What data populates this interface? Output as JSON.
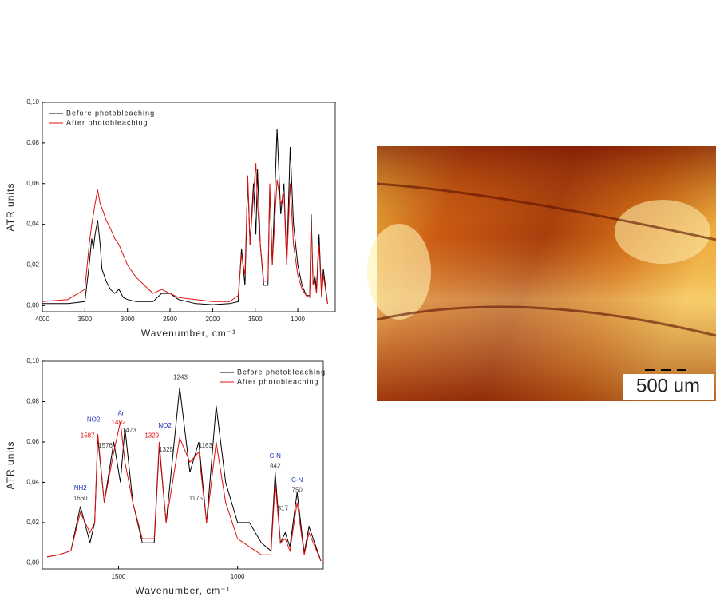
{
  "chart_data": [
    {
      "type": "line",
      "ylabel": "ATR units",
      "xlabel": "Wavenumber, cm⁻¹",
      "legend": "upper left",
      "xlim": [
        4000,
        560
      ],
      "ylim": [
        -0.003,
        0.1
      ],
      "xticks": [
        4000,
        3500,
        3000,
        2500,
        2000,
        1500,
        1000
      ],
      "yticks": [
        {
          "value": 0,
          "label": "0,00"
        },
        {
          "value": 0.02,
          "label": "0,02"
        },
        {
          "value": 0.04,
          "label": "0,04"
        },
        {
          "value": 0.06,
          "label": "0,06"
        },
        {
          "value": 0.08,
          "label": "0,08"
        },
        {
          "value": 0.1,
          "label": "0,10"
        }
      ],
      "x": [
        4000,
        3700,
        3500,
        3450,
        3420,
        3400,
        3380,
        3350,
        3320,
        3300,
        3250,
        3200,
        3150,
        3100,
        3050,
        3000,
        2900,
        2700,
        2600,
        2500,
        2400,
        2200,
        2000,
        1800,
        1700,
        1660,
        1620,
        1587,
        1560,
        1520,
        1492,
        1473,
        1440,
        1400,
        1350,
        1329,
        1300,
        1243,
        1200,
        1163,
        1130,
        1090,
        1050,
        1000,
        950,
        900,
        860,
        842,
        820,
        800,
        780,
        750,
        720,
        700,
        650
      ],
      "series": [
        {
          "name": "Before photobleaching",
          "color": "#000000",
          "values": [
            0.001,
            0.001,
            0.002,
            0.02,
            0.033,
            0.028,
            0.035,
            0.042,
            0.03,
            0.018,
            0.012,
            0.008,
            0.006,
            0.008,
            0.004,
            0.003,
            0.002,
            0.002,
            0.006,
            0.006,
            0.003,
            0.001,
            0.0005,
            0.001,
            0.002,
            0.028,
            0.01,
            0.062,
            0.03,
            0.06,
            0.035,
            0.067,
            0.03,
            0.01,
            0.01,
            0.058,
            0.02,
            0.087,
            0.045,
            0.06,
            0.02,
            0.078,
            0.04,
            0.02,
            0.01,
            0.005,
            0.005,
            0.045,
            0.01,
            0.015,
            0.008,
            0.035,
            0.005,
            0.018,
            0.001
          ]
        },
        {
          "name": "After photobleaching",
          "color": "#e01010",
          "values": [
            0.002,
            0.003,
            0.008,
            0.03,
            0.04,
            0.045,
            0.05,
            0.057,
            0.05,
            0.048,
            0.042,
            0.038,
            0.033,
            0.03,
            0.025,
            0.02,
            0.014,
            0.006,
            0.008,
            0.006,
            0.004,
            0.003,
            0.002,
            0.002,
            0.005,
            0.025,
            0.015,
            0.064,
            0.03,
            0.055,
            0.07,
            0.05,
            0.03,
            0.012,
            0.012,
            0.06,
            0.02,
            0.062,
            0.05,
            0.055,
            0.02,
            0.06,
            0.03,
            0.015,
            0.008,
            0.005,
            0.004,
            0.04,
            0.01,
            0.012,
            0.006,
            0.03,
            0.004,
            0.015,
            0.001
          ]
        }
      ]
    },
    {
      "type": "line",
      "ylabel": "ATR units",
      "xlabel": "Wavenumber, cm⁻¹",
      "legend": "upper right",
      "xlim": [
        1820,
        640
      ],
      "ylim": [
        -0.003,
        0.1
      ],
      "xticks": [
        1500,
        1000
      ],
      "yticks": [
        {
          "value": 0,
          "label": "0,00"
        },
        {
          "value": 0.02,
          "label": "0,02"
        },
        {
          "value": 0.04,
          "label": "0,04"
        },
        {
          "value": 0.06,
          "label": "0,06"
        },
        {
          "value": 0.08,
          "label": "0,08"
        },
        {
          "value": 0.1,
          "label": "0,10"
        }
      ],
      "x": [
        1800,
        1750,
        1700,
        1660,
        1620,
        1600,
        1587,
        1560,
        1520,
        1492,
        1473,
        1440,
        1400,
        1350,
        1329,
        1300,
        1243,
        1200,
        1163,
        1130,
        1090,
        1050,
        1000,
        950,
        900,
        860,
        842,
        820,
        800,
        780,
        750,
        720,
        700,
        650
      ],
      "series": [
        {
          "name": "Before photobleaching",
          "color": "#000000",
          "values": [
            0.003,
            0.004,
            0.006,
            0.028,
            0.01,
            0.02,
            0.062,
            0.03,
            0.06,
            0.04,
            0.067,
            0.03,
            0.01,
            0.01,
            0.058,
            0.02,
            0.087,
            0.045,
            0.06,
            0.02,
            0.078,
            0.04,
            0.02,
            0.02,
            0.01,
            0.006,
            0.045,
            0.01,
            0.015,
            0.008,
            0.035,
            0.005,
            0.018,
            0.001
          ]
        },
        {
          "name": "After photobleaching",
          "color": "#e01010",
          "values": [
            0.003,
            0.004,
            0.006,
            0.025,
            0.015,
            0.02,
            0.064,
            0.03,
            0.055,
            0.07,
            0.05,
            0.03,
            0.012,
            0.012,
            0.06,
            0.02,
            0.062,
            0.05,
            0.055,
            0.02,
            0.06,
            0.03,
            0.012,
            0.008,
            0.004,
            0.004,
            0.04,
            0.01,
            0.012,
            0.006,
            0.03,
            0.004,
            0.015,
            0.001
          ]
        }
      ],
      "annotations": [
        {
          "text": "NH2",
          "x": 1660,
          "y": 0.037,
          "color": "#2030c0"
        },
        {
          "text": "1660",
          "x": 1660,
          "y": 0.032,
          "color": "#404040"
        },
        {
          "text": "NO2",
          "x": 1605,
          "y": 0.071,
          "color": "#2030c0"
        },
        {
          "text": "1587",
          "x": 1630,
          "y": 0.063,
          "color": "#e01010"
        },
        {
          "text": "1576",
          "x": 1555,
          "y": 0.058,
          "color": "#404040"
        },
        {
          "text": "Ar",
          "x": 1490,
          "y": 0.074,
          "color": "#2030c0"
        },
        {
          "text": "1492",
          "x": 1500,
          "y": 0.0695,
          "color": "#e01010"
        },
        {
          "text": "1473",
          "x": 1455,
          "y": 0.0655,
          "color": "#404040"
        },
        {
          "text": "NO2",
          "x": 1305,
          "y": 0.068,
          "color": "#2030c0"
        },
        {
          "text": "1329",
          "x": 1360,
          "y": 0.063,
          "color": "#e01010"
        },
        {
          "text": "1325",
          "x": 1300,
          "y": 0.056,
          "color": "#404040"
        },
        {
          "text": "1243",
          "x": 1240,
          "y": 0.092,
          "color": "#404040"
        },
        {
          "text": "1163",
          "x": 1135,
          "y": 0.058,
          "color": "#404040"
        },
        {
          "text": "1175",
          "x": 1175,
          "y": 0.032,
          "color": "#404040"
        },
        {
          "text": "C-N",
          "x": 842,
          "y": 0.053,
          "color": "#2030c0"
        },
        {
          "text": "842",
          "x": 842,
          "y": 0.048,
          "color": "#404040"
        },
        {
          "text": "817",
          "x": 810,
          "y": 0.027,
          "color": "#404040"
        },
        {
          "text": "C-N",
          "x": 750,
          "y": 0.041,
          "color": "#2030c0"
        },
        {
          "text": "750",
          "x": 750,
          "y": 0.036,
          "color": "#404040"
        }
      ]
    }
  ],
  "image": {
    "scale_label": "500 um"
  }
}
